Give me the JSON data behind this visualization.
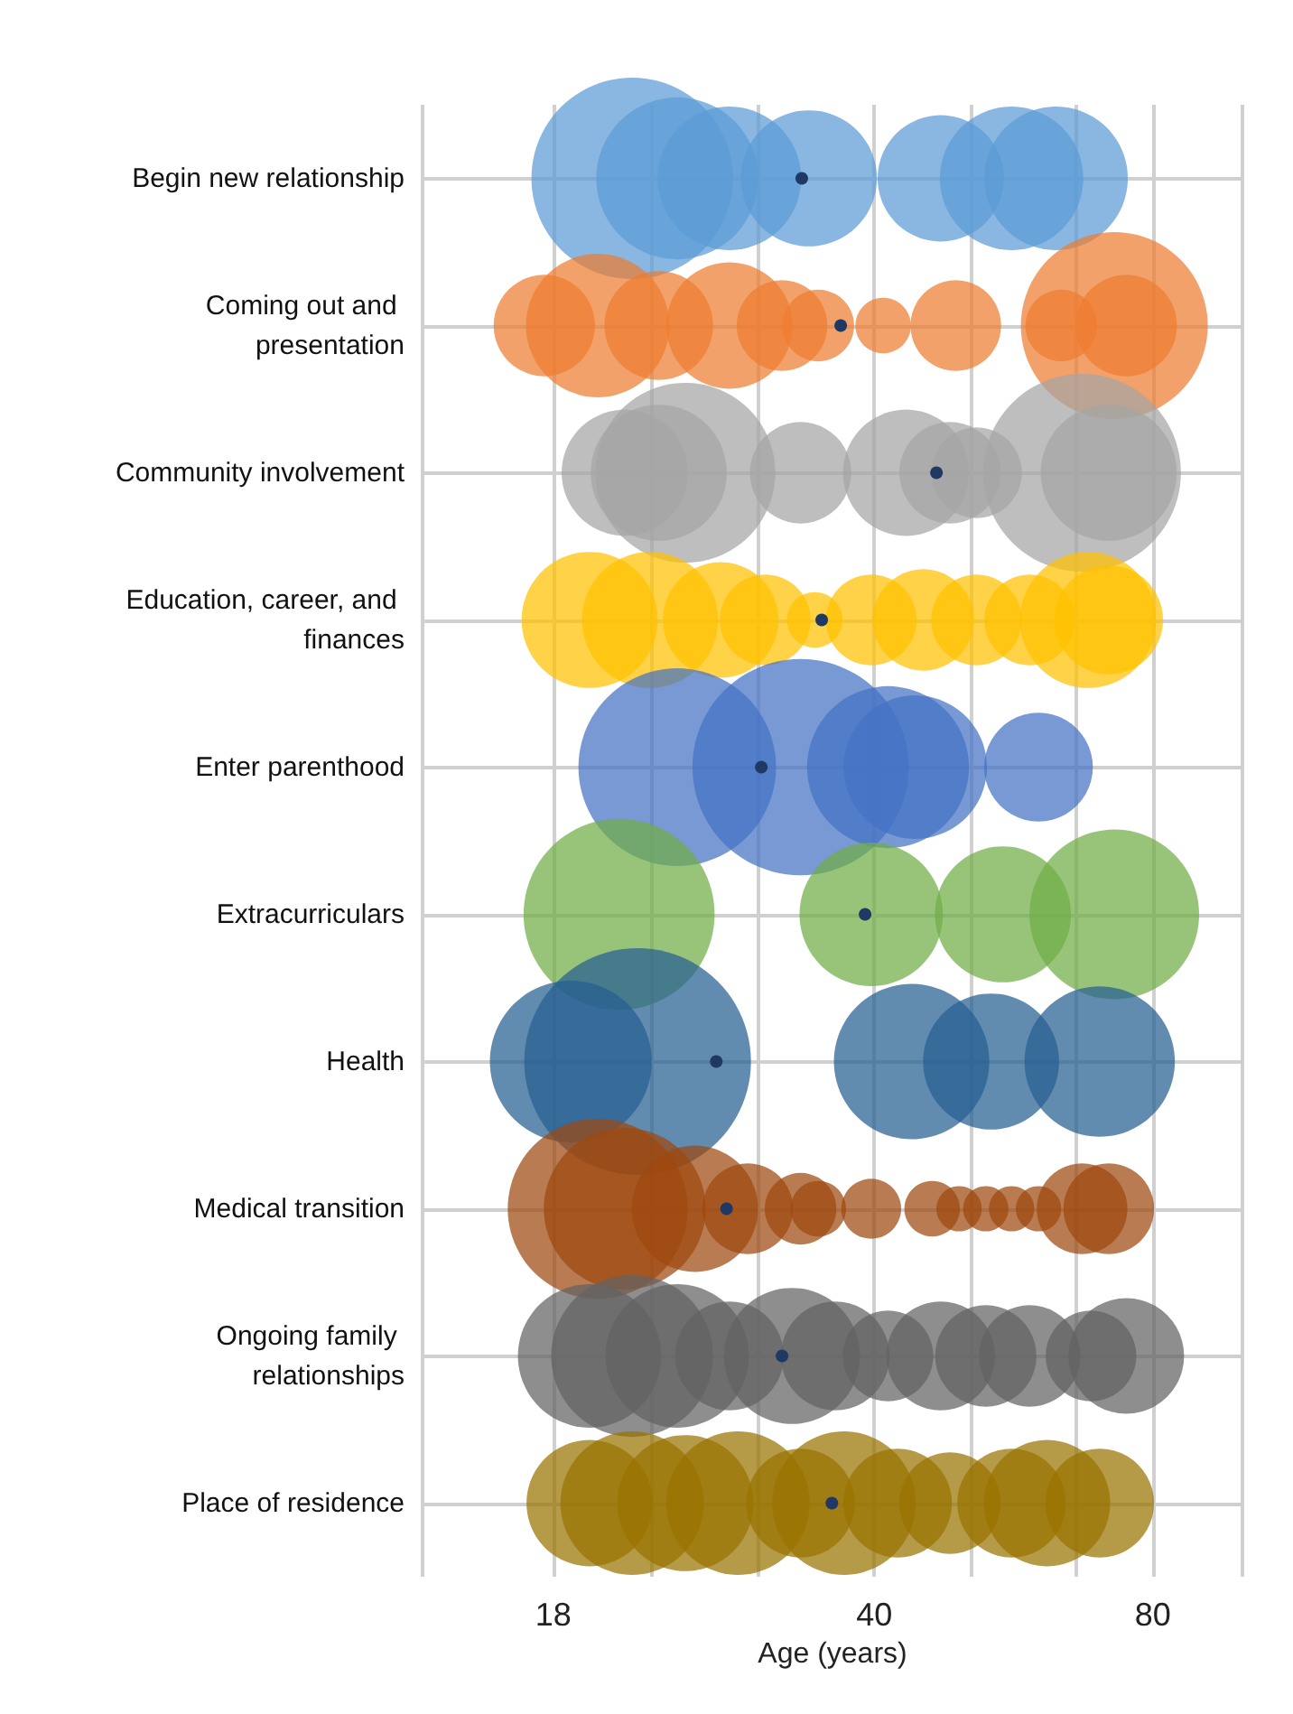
{
  "chart_data": {
    "type": "bubble",
    "orientation": "horizontal",
    "xlabel": "Age (years)",
    "log": "x",
    "grid": true,
    "marker": "circle",
    "categories": [
      "Begin new relationship",
      "Coming out and presentation",
      "Community involvement",
      "Education, career, and finances",
      "Enter parenthood",
      "Extracurriculars",
      "Health",
      "Medical transition",
      "Ongoing family relationships",
      "Place of residence"
    ],
    "xlim": [
      13,
      100
    ],
    "xticks": [
      {
        "value": 13,
        "label": null
      },
      18,
      {
        "value": 23,
        "label": null
      },
      {
        "value": 30,
        "label": null
      },
      40,
      {
        "value": 51,
        "label": null
      },
      {
        "value": 66,
        "label": null
      },
      80,
      {
        "value": 100,
        "label": null
      }
    ],
    "series": [
      {
        "color": "#5b9bd5",
        "values": [
          21.9,
          24.5,
          27.9,
          34.0,
          47.2,
          56.3,
          62.9
        ],
        "x": [
          "Begin new relationship",
          "Begin new relationship",
          "Begin new relationship",
          "Begin new relationship",
          "Begin new relationship",
          "Begin new relationship",
          "Begin new relationship"
        ],
        "sizes": [
          0.79,
          0.51,
          0.4,
          0.36,
          0.31,
          0.4,
          0.4
        ]
      },
      {
        "color": "#ed7d31",
        "values": [
          17.6,
          20.1,
          23.4,
          27.9,
          31.8,
          34.8,
          40.9,
          49.0,
          63.7,
          72.7,
          74.9
        ],
        "x": [
          "Coming out and presentation",
          "Coming out and presentation",
          "Coming out and presentation",
          "Coming out and presentation",
          "Coming out and presentation",
          "Coming out and presentation",
          "Coming out and presentation",
          "Coming out and presentation",
          "Coming out and presentation",
          "Coming out and presentation",
          "Coming out and presentation"
        ],
        "sizes": [
          0.2,
          0.4,
          0.23,
          0.31,
          0.16,
          0.1,
          0.06,
          0.16,
          0.1,
          0.68,
          0.2
        ]
      },
      {
        "color": "#a5a5a5",
        "values": [
          21.5,
          25.0,
          23.4,
          33.3,
          43.3,
          48.3,
          51.6,
          67.1,
          71.7
        ],
        "x": [
          "Community involvement",
          "Community involvement",
          "Community involvement",
          "Community involvement",
          "Community involvement",
          "Community involvement",
          "Community involvement",
          "Community involvement",
          "Community involvement"
        ],
        "sizes": [
          0.31,
          0.63,
          0.36,
          0.2,
          0.31,
          0.2,
          0.16,
          0.76,
          0.36
        ]
      },
      {
        "color": "#ffc000",
        "values": [
          19.7,
          22.9,
          27.3,
          30.5,
          34.5,
          39.7,
          45.2,
          51.6,
          58.9,
          68.1,
          71.7
        ],
        "x": [
          "Education, career, and finances",
          "Education, career, and finances",
          "Education, career, and finances",
          "Education, career, and finances",
          "Education, career, and finances",
          "Education, career, and finances",
          "Education, career, and finances",
          "Education, career, and finances",
          "Education, career, and finances",
          "Education, career, and finances",
          "Education, career, and finances"
        ],
        "sizes": [
          0.36,
          0.36,
          0.26,
          0.16,
          0.06,
          0.16,
          0.2,
          0.16,
          0.16,
          0.36,
          0.23
        ]
      },
      {
        "color": "#4472c4",
        "values": [
          24.5,
          33.3,
          41.4,
          44.3,
          60.2
        ],
        "x": [
          "Enter parenthood",
          "Enter parenthood",
          "Enter parenthood",
          "Enter parenthood",
          "Enter parenthood"
        ],
        "sizes": [
          0.76,
          0.91,
          0.51,
          0.4,
          0.23
        ]
      },
      {
        "color": "#70ad47",
        "values": [
          21.2,
          39.7,
          55.1,
          72.7
        ],
        "x": [
          "Extracurriculars",
          "Extracurriculars",
          "Extracurriculars",
          "Extracurriculars"
        ],
        "sizes": [
          0.71,
          0.4,
          0.36,
          0.56
        ]
      },
      {
        "color": "#255e91",
        "values": [
          18.8,
          22.2,
          43.9,
          53.5,
          70.1
        ],
        "x": [
          "Health",
          "Health",
          "Health",
          "Health",
          "Health"
        ],
        "sizes": [
          0.51,
          1,
          0.47,
          0.36,
          0.44
        ]
      },
      {
        "color": "#9e480e",
        "values": [
          20.1,
          21.5,
          25.6,
          29.2,
          33.3,
          34.8,
          39.7,
          46.2,
          49.4,
          52.8,
          56.3,
          60.2,
          67.1,
          71.7
        ],
        "x": [
          "Medical transition",
          "Medical transition",
          "Medical transition",
          "Medical transition",
          "Medical transition",
          "Medical transition",
          "Medical transition",
          "Medical transition",
          "Medical transition",
          "Medical transition",
          "Medical transition",
          "Medical transition",
          "Medical transition",
          "Medical transition"
        ],
        "sizes": [
          0.63,
          0.51,
          0.31,
          0.16,
          0.1,
          0.06,
          0.07,
          0.06,
          0.04,
          0.04,
          0.04,
          0.04,
          0.16,
          0.16
        ]
      },
      {
        "color": "#636363",
        "values": [
          19.7,
          21.9,
          24.5,
          27.9,
          32.6,
          36.3,
          41.4,
          47.2,
          52.8,
          58.9,
          68.6,
          74.9
        ],
        "x": [
          "Ongoing family relationships",
          "Ongoing family relationships",
          "Ongoing family relationships",
          "Ongoing family relationships",
          "Ongoing family relationships",
          "Ongoing family relationships",
          "Ongoing family relationships",
          "Ongoing family relationships",
          "Ongoing family relationships",
          "Ongoing family relationships",
          "Ongoing family relationships",
          "Ongoing family relationships"
        ],
        "sizes": [
          0.4,
          0.51,
          0.4,
          0.23,
          0.36,
          0.23,
          0.16,
          0.23,
          0.2,
          0.2,
          0.16,
          0.26
        ]
      },
      {
        "color": "#997300",
        "values": [
          19.7,
          21.9,
          25.0,
          28.5,
          33.3,
          37.1,
          42.4,
          48.3,
          56.3,
          61.5,
          70.1
        ],
        "x": [
          "Place of residence",
          "Place of residence",
          "Place of residence",
          "Place of residence",
          "Place of residence",
          "Place of residence",
          "Place of residence",
          "Place of residence",
          "Place of residence",
          "Place of residence",
          "Place of residence"
        ],
        "sizes": [
          0.31,
          0.4,
          0.36,
          0.4,
          0.23,
          0.4,
          0.23,
          0.2,
          0.23,
          0.31,
          0.23
        ]
      },
      {
        "type": "scatter",
        "color": "#203864",
        "values": [
          33.4,
          36.8,
          46.7,
          35.1,
          30.2,
          39.1,
          27.0,
          27.7,
          31.8,
          36.0
        ],
        "x": [
          "Begin new relationship",
          "Coming out and presentation",
          "Community involvement",
          "Education, career, and finances",
          "Enter parenthood",
          "Extracurriculars",
          "Health",
          "Medical transition",
          "Ongoing family relationships",
          "Place of residence"
        ]
      }
    ]
  }
}
